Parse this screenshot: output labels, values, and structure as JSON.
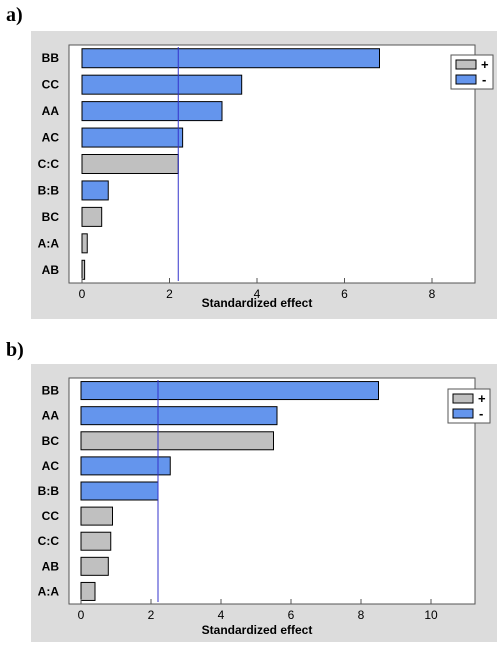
{
  "panels": [
    {
      "label": "a)"
    },
    {
      "label": "b)"
    }
  ],
  "legend": {
    "plus_label": "+",
    "minus_label": "-"
  },
  "colors": {
    "positive": "#c0c0c0",
    "negative": "#6495ed",
    "reference_line": "#3333cc",
    "panel_bg": "#dcdcdc"
  },
  "chart_data": [
    {
      "type": "bar",
      "orientation": "horizontal",
      "categories": [
        "BB",
        "CC",
        "AA",
        "AC",
        "C:C",
        "B:B",
        "BC",
        "A:A",
        "AB"
      ],
      "values": [
        6.8,
        3.65,
        3.2,
        2.3,
        2.2,
        0.6,
        0.45,
        0.12,
        0.06
      ],
      "signs": [
        "-",
        "-",
        "-",
        "-",
        "+",
        "-",
        "+",
        "+",
        "+"
      ],
      "xlabel": "Standardized effect",
      "xlim": [
        0,
        8
      ],
      "xticks": [
        0,
        2,
        4,
        6,
        8
      ],
      "reference_line": 2.2,
      "legend": [
        "+",
        "-"
      ],
      "legend_position": "top-right"
    },
    {
      "type": "bar",
      "orientation": "horizontal",
      "categories": [
        "BB",
        "AA",
        "BC",
        "AC",
        "B:B",
        "CC",
        "C:C",
        "AB",
        "A:A"
      ],
      "values": [
        8.5,
        5.6,
        5.5,
        2.55,
        2.2,
        0.9,
        0.85,
        0.78,
        0.4
      ],
      "signs": [
        "-",
        "-",
        "+",
        "-",
        "-",
        "+",
        "+",
        "+",
        "+"
      ],
      "xlabel": "Standardized effect",
      "xlim": [
        0,
        10
      ],
      "xticks": [
        0,
        2,
        4,
        6,
        8,
        10
      ],
      "reference_line": 2.2,
      "legend": [
        "+",
        "-"
      ],
      "legend_position": "top-right"
    }
  ]
}
